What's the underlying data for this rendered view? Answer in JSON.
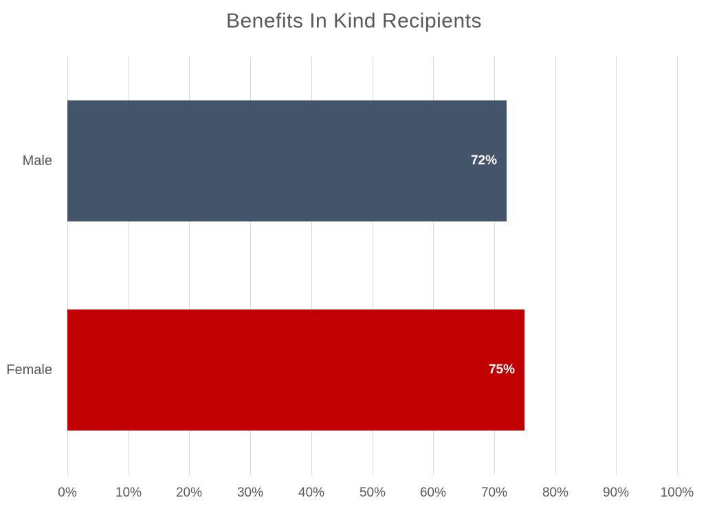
{
  "chart_data": {
    "type": "bar",
    "orientation": "horizontal",
    "title": "Benefits In Kind Recipients",
    "categories": [
      "Male",
      "Female"
    ],
    "values": [
      72,
      75
    ],
    "data_labels": [
      "72%",
      "75%"
    ],
    "data_label_position": "inside-end",
    "series_colors": [
      "#44546A",
      "#C00000"
    ],
    "xlabel": "",
    "ylabel": "",
    "xlim": [
      0,
      100
    ],
    "x_tick_values": [
      0,
      10,
      20,
      30,
      40,
      50,
      60,
      70,
      80,
      90,
      100
    ],
    "x_tick_labels": [
      "0%",
      "10%",
      "20%",
      "30%",
      "40%",
      "50%",
      "60%",
      "70%",
      "80%",
      "90%",
      "100%"
    ],
    "grid": "vertical",
    "legend": "none",
    "colors": {
      "title_text": "#595959",
      "axis_text": "#595959",
      "gridline": "#D9D9D9",
      "data_label_text": "#FFFFFF",
      "background": "#FFFFFF"
    }
  }
}
